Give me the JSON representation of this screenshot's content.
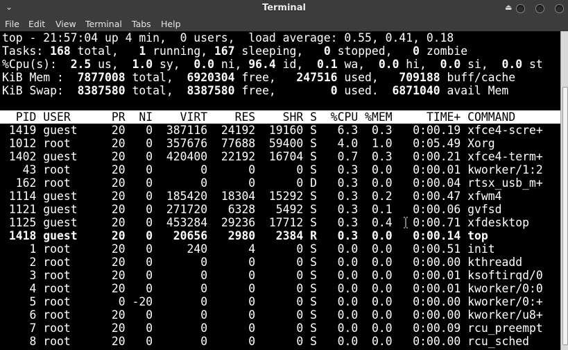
{
  "window": {
    "title": "Terminal"
  },
  "menu": [
    "File",
    "Edit",
    "View",
    "Terminal",
    "Tabs",
    "Help"
  ],
  "summary": [
    [
      {
        "t": "top - 21:57:04 up 4 min,  0 users,  load average: 0.55, 0.41, 0.18"
      }
    ],
    [
      {
        "t": "Tasks: "
      },
      {
        "t": "168",
        "b": true
      },
      {
        "t": " total,   "
      },
      {
        "t": "1",
        "b": true
      },
      {
        "t": " running, "
      },
      {
        "t": "167",
        "b": true
      },
      {
        "t": " sleeping,   "
      },
      {
        "t": "0",
        "b": true
      },
      {
        "t": " stopped,   "
      },
      {
        "t": "0",
        "b": true
      },
      {
        "t": " zombie"
      }
    ],
    [
      {
        "t": "%Cpu(s):  "
      },
      {
        "t": "2.5",
        "b": true
      },
      {
        "t": " us,  "
      },
      {
        "t": "1.0",
        "b": true
      },
      {
        "t": " sy,  "
      },
      {
        "t": "0.0",
        "b": true
      },
      {
        "t": " ni, "
      },
      {
        "t": "96.4",
        "b": true
      },
      {
        "t": " id,  "
      },
      {
        "t": "0.1",
        "b": true
      },
      {
        "t": " wa,  "
      },
      {
        "t": "0.0",
        "b": true
      },
      {
        "t": " hi,  "
      },
      {
        "t": "0.0",
        "b": true
      },
      {
        "t": " si,  "
      },
      {
        "t": "0.0",
        "b": true
      },
      {
        "t": " st"
      }
    ],
    [
      {
        "t": "KiB Mem :  "
      },
      {
        "t": "7877008",
        "b": true
      },
      {
        "t": " total,  "
      },
      {
        "t": "6920304",
        "b": true
      },
      {
        "t": " free,   "
      },
      {
        "t": "247516",
        "b": true
      },
      {
        "t": " used,   "
      },
      {
        "t": "709188",
        "b": true
      },
      {
        "t": " buff/cache"
      }
    ],
    [
      {
        "t": "KiB Swap:  "
      },
      {
        "t": "8387580",
        "b": true
      },
      {
        "t": " total,  "
      },
      {
        "t": "8387580",
        "b": true
      },
      {
        "t": " free,        "
      },
      {
        "t": "0",
        "b": true
      },
      {
        "t": " used.  "
      },
      {
        "t": "6871040",
        "b": true
      },
      {
        "t": " avail Mem"
      }
    ]
  ],
  "table": {
    "columns": [
      "PID",
      "USER",
      "PR",
      "NI",
      "VIRT",
      "RES",
      "SHR",
      "S",
      "%CPU",
      "%MEM",
      "TIME+",
      "COMMAND"
    ],
    "rows": [
      [
        "1419",
        "guest",
        "20",
        "0",
        "387116",
        "24192",
        "19160",
        "S",
        "6.3",
        "0.3",
        "0:00.19",
        "xfce4-scre+"
      ],
      [
        "1012",
        "root",
        "20",
        "0",
        "357676",
        "77688",
        "59400",
        "S",
        "4.0",
        "1.0",
        "0:05.49",
        "Xorg"
      ],
      [
        "1402",
        "guest",
        "20",
        "0",
        "420400",
        "22192",
        "16704",
        "S",
        "0.7",
        "0.3",
        "0:00.21",
        "xfce4-term+"
      ],
      [
        "43",
        "root",
        "20",
        "0",
        "0",
        "0",
        "0",
        "S",
        "0.3",
        "0.0",
        "0:00.01",
        "kworker/1:2"
      ],
      [
        "162",
        "root",
        "20",
        "0",
        "0",
        "0",
        "0",
        "D",
        "0.3",
        "0.0",
        "0:00.04",
        "rtsx_usb_m+"
      ],
      [
        "1114",
        "guest",
        "20",
        "0",
        "185420",
        "18304",
        "15292",
        "S",
        "0.3",
        "0.2",
        "0:00.47",
        "xfwm4"
      ],
      [
        "1121",
        "guest",
        "20",
        "0",
        "271720",
        "6328",
        "5492",
        "S",
        "0.3",
        "0.1",
        "0:00.06",
        "gvfsd"
      ],
      [
        "1125",
        "guest",
        "20",
        "0",
        "453284",
        "29236",
        "17712",
        "S",
        "0.3",
        "0.4",
        "0:00.71",
        "xfdesktop"
      ],
      [
        "1418",
        "guest",
        "20",
        "0",
        "20656",
        "2980",
        "2384",
        "R",
        "0.3",
        "0.0",
        "0:00.14",
        "top"
      ],
      [
        "1",
        "root",
        "20",
        "0",
        "240",
        "4",
        "0",
        "S",
        "0.0",
        "0.0",
        "0:00.51",
        "init"
      ],
      [
        "2",
        "root",
        "20",
        "0",
        "0",
        "0",
        "0",
        "S",
        "0.0",
        "0.0",
        "0:00.00",
        "kthreadd"
      ],
      [
        "3",
        "root",
        "20",
        "0",
        "0",
        "0",
        "0",
        "S",
        "0.0",
        "0.0",
        "0:00.01",
        "ksoftirqd/0"
      ],
      [
        "4",
        "root",
        "20",
        "0",
        "0",
        "0",
        "0",
        "S",
        "0.0",
        "0.0",
        "0:00.01",
        "kworker/0:0"
      ],
      [
        "5",
        "root",
        "0",
        "-20",
        "0",
        "0",
        "0",
        "S",
        "0.0",
        "0.0",
        "0:00.00",
        "kworker/0:+"
      ],
      [
        "6",
        "root",
        "20",
        "0",
        "0",
        "0",
        "0",
        "S",
        "0.0",
        "0.0",
        "0:00.00",
        "kworker/u8+"
      ],
      [
        "7",
        "root",
        "20",
        "0",
        "0",
        "0",
        "0",
        "S",
        "0.0",
        "0.0",
        "0:00.09",
        "rcu_preempt"
      ],
      [
        "8",
        "root",
        "20",
        "0",
        "0",
        "0",
        "0",
        "S",
        "0.0",
        "0.0",
        "0:00.00",
        "rcu_sched"
      ]
    ],
    "highlighted_pid": "1418"
  }
}
